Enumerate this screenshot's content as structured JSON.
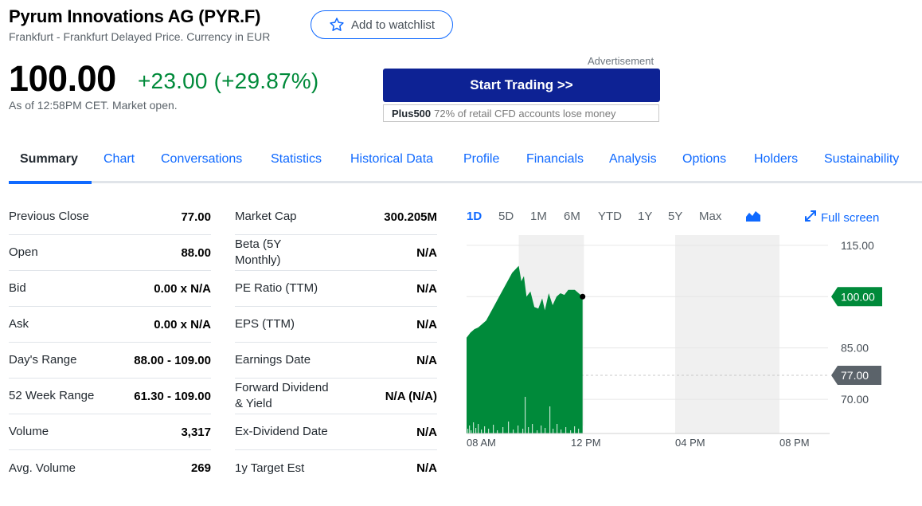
{
  "header": {
    "title": "Pyrum Innovations AG (PYR.F)",
    "subtitle": "Frankfurt - Frankfurt Delayed Price. Currency in EUR",
    "watchlist_label": "Add to watchlist"
  },
  "quote": {
    "price": "100.00",
    "change": "+23.00 (+29.87%)",
    "as_of": "As of 12:58PM CET. Market open."
  },
  "ad": {
    "label": "Advertisement",
    "button": "Start Trading >>",
    "brand": "Plus500",
    "disclaimer": "72% of retail CFD accounts lose money"
  },
  "tabs": [
    {
      "label": "Summary",
      "active": true
    },
    {
      "label": "Chart"
    },
    {
      "label": "Conversations"
    },
    {
      "label": "Statistics"
    },
    {
      "label": "Historical Data"
    },
    {
      "label": "Profile"
    },
    {
      "label": "Financials"
    },
    {
      "label": "Analysis"
    },
    {
      "label": "Options"
    },
    {
      "label": "Holders"
    },
    {
      "label": "Sustainability"
    }
  ],
  "stats_left": [
    {
      "label": "Previous Close",
      "value": "77.00"
    },
    {
      "label": "Open",
      "value": "88.00"
    },
    {
      "label": "Bid",
      "value": "0.00 x N/A"
    },
    {
      "label": "Ask",
      "value": "0.00 x N/A"
    },
    {
      "label": "Day's Range",
      "value": "88.00 - 109.00"
    },
    {
      "label": "52 Week Range",
      "value": "61.30 - 109.00"
    },
    {
      "label": "Volume",
      "value": "3,317"
    },
    {
      "label": "Avg. Volume",
      "value": "269"
    }
  ],
  "stats_right": [
    {
      "label": "Market Cap",
      "value": "300.205M"
    },
    {
      "label": "Beta (5Y Monthly)",
      "value": "N/A"
    },
    {
      "label": "PE Ratio (TTM)",
      "value": "N/A"
    },
    {
      "label": "EPS (TTM)",
      "value": "N/A"
    },
    {
      "label": "Earnings Date",
      "value": "N/A"
    },
    {
      "label": "Forward Dividend & Yield",
      "value": "N/A (N/A)"
    },
    {
      "label": "Ex-Dividend Date",
      "value": "N/A"
    },
    {
      "label": "1y Target Est",
      "value": "N/A"
    }
  ],
  "chart_controls": {
    "ranges": [
      "1D",
      "5D",
      "1M",
      "6M",
      "YTD",
      "1Y",
      "5Y",
      "Max"
    ],
    "active_range": "1D",
    "chart_type_icon": "mountain-chart-icon",
    "fullscreen_label": "Full screen"
  },
  "colors": {
    "accent": "#0f69ff",
    "positive": "#008a3a",
    "area_fill": "#008a3a",
    "ad_button": "#0d2294",
    "prev_close_tag": "#5b636a"
  },
  "chart_data": {
    "type": "area",
    "x_ticks": [
      "08 AM",
      "12 PM",
      "04 PM",
      "08 PM"
    ],
    "y_ticks": [
      "115.00",
      "85.00",
      "70.00"
    ],
    "ylim": [
      60,
      118
    ],
    "current_label": "100.00",
    "current_value": 100,
    "prev_close_label": "77.00",
    "prev_close_value": 77,
    "x_hours": [
      8.0,
      8.15,
      8.3,
      8.45,
      8.6,
      8.75,
      9.0,
      9.25,
      9.5,
      9.75,
      10.0,
      10.1,
      10.2,
      10.3,
      10.45,
      10.6,
      10.75,
      10.9,
      11.0,
      11.15,
      11.3,
      11.45,
      11.6,
      11.75,
      11.9,
      12.0,
      12.15,
      12.3,
      12.45
    ],
    "y_values": [
      88.0,
      89.5,
      90.5,
      91.0,
      92.0,
      93.0,
      96.5,
      100.0,
      103.5,
      107.0,
      109.0,
      104.5,
      106.0,
      100.0,
      101.5,
      97.0,
      96.5,
      99.5,
      96.0,
      101.0,
      97.5,
      100.0,
      101.0,
      100.5,
      102.0,
      102.0,
      102.0,
      101.0,
      100.0
    ],
    "shaded_regions_hours": [
      [
        10.0,
        12.5
      ],
      [
        16.0,
        20.0
      ]
    ],
    "volume_description": "intraday volume bars"
  }
}
